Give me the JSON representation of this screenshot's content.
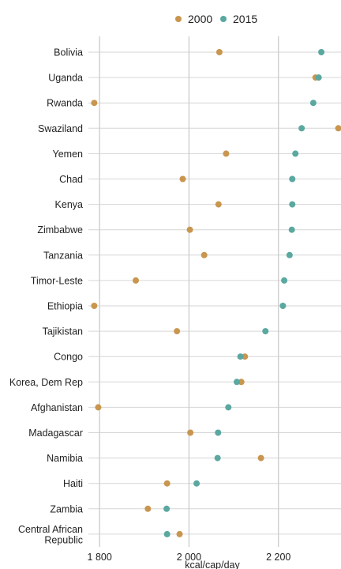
{
  "chart_data": {
    "type": "scatter",
    "orientation": "horizontal-dot-plot",
    "title": "",
    "xlabel": "kcal/cap/day",
    "ylabel": "",
    "xlim": [
      1775,
      2340
    ],
    "xticks": [
      1800,
      2000,
      2200
    ],
    "xtick_labels": [
      "1 800",
      "2 000",
      "2 200"
    ],
    "grid": true,
    "legend_position": "top-center",
    "categories": [
      "Bolivia",
      "Uganda",
      "Rwanda",
      "Swaziland",
      "Yemen",
      "Chad",
      "Kenya",
      "Zimbabwe",
      "Tanzania",
      "Timor-Leste",
      "Ethiopia",
      "Tajikistan",
      "Congo",
      "Korea, Dem Rep",
      "Afghanistan",
      "Madagascar",
      "Namibia",
      "Haiti",
      "Zambia",
      "Central African Republic"
    ],
    "category_lines": [
      [
        "Bolivia"
      ],
      [
        "Uganda"
      ],
      [
        "Rwanda"
      ],
      [
        "Swaziland"
      ],
      [
        "Yemen"
      ],
      [
        "Chad"
      ],
      [
        "Kenya"
      ],
      [
        "Zimbabwe"
      ],
      [
        "Tanzania"
      ],
      [
        "Timor-Leste"
      ],
      [
        "Ethiopia"
      ],
      [
        "Tajikistan"
      ],
      [
        "Congo"
      ],
      [
        "Korea, Dem Rep"
      ],
      [
        "Afghanistan"
      ],
      [
        "Madagascar"
      ],
      [
        "Namibia"
      ],
      [
        "Haiti"
      ],
      [
        "Zambia"
      ],
      [
        "Central African",
        "Republic"
      ]
    ],
    "series": [
      {
        "name": "2000",
        "color": "#c9964f",
        "values": [
          2068,
          2283,
          1788,
          2334,
          2083,
          1986,
          2066,
          2002,
          2034,
          1881,
          1788,
          1973,
          2125,
          2117,
          1797,
          2003,
          2161,
          1951,
          1908,
          1979
        ]
      },
      {
        "name": "2015",
        "color": "#5aa8a0",
        "values": [
          2296,
          2290,
          2278,
          2252,
          2238,
          2231,
          2231,
          2230,
          2225,
          2213,
          2210,
          2171,
          2115,
          2107,
          2088,
          2065,
          2064,
          2017,
          1950,
          1951
        ]
      }
    ]
  }
}
